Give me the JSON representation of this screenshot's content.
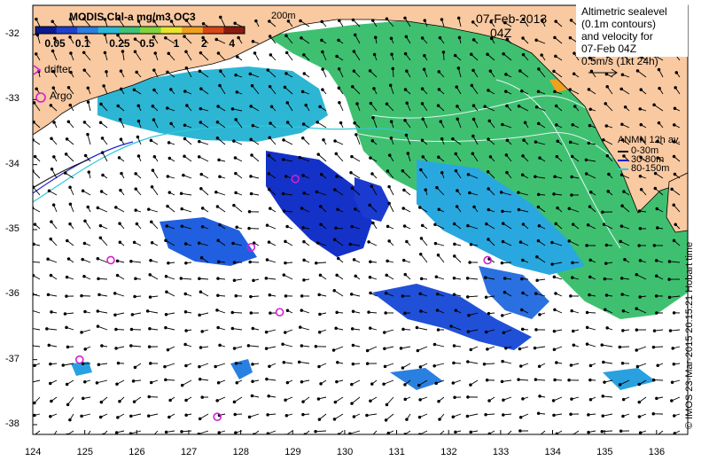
{
  "colorbar": {
    "title": "MODIS Chl-a mg/m3 OC3",
    "tick_labels": [
      "0.05",
      "0.1",
      "0.25",
      "0.5",
      "1",
      "2",
      "4"
    ],
    "colors": [
      "#0b1a8f",
      "#1f3fd0",
      "#2a7fe0",
      "#29b8d8",
      "#3cc27a",
      "#7fd43a",
      "#e8e52a",
      "#f0a020",
      "#d8461a",
      "#8a1a10"
    ]
  },
  "isobath_label": "200m",
  "date": "07-Feb-2013",
  "time": "04Z",
  "altimetry_note": [
    "Altimetric sealevel",
    "(0.1m contours)",
    "and velocity for",
    "07-Feb 04Z"
  ],
  "velocity_scale_label": "0.5m/s (1kt 24h)",
  "legend": {
    "drifter_label": "drifter",
    "argo_label": "Argo"
  },
  "anmn": {
    "title": "ANMN 12h av.",
    "items": [
      {
        "label": "0-30m",
        "color": "#111111"
      },
      {
        "label": "30-80m",
        "color": "#2020d0"
      },
      {
        "label": "80-150m",
        "color": "#30c8d8"
      }
    ]
  },
  "credit": "© IMOS 23-Mar-2015 20:15:21 Hobart time",
  "axes": {
    "x_ticks": [
      "124",
      "125",
      "126",
      "127",
      "128",
      "129",
      "130",
      "131",
      "132",
      "133",
      "134",
      "135",
      "136"
    ],
    "y_ticks": [
      "-32",
      "-33",
      "-34",
      "-35",
      "-36",
      "-37",
      "-38"
    ]
  },
  "colors": {
    "land": "#f9c9a1",
    "frame": "#000000",
    "argo_marker": "#d020d0"
  },
  "argo_floats": [
    {
      "lon": 125.5,
      "lat": -35.47
    },
    {
      "lon": 124.9,
      "lat": -37.0
    },
    {
      "lon": 127.55,
      "lat": -37.88
    },
    {
      "lon": 128.2,
      "lat": -35.27
    },
    {
      "lon": 128.75,
      "lat": -36.27
    },
    {
      "lon": 132.75,
      "lat": -35.47
    },
    {
      "lon": 129.05,
      "lat": -34.22
    }
  ]
}
